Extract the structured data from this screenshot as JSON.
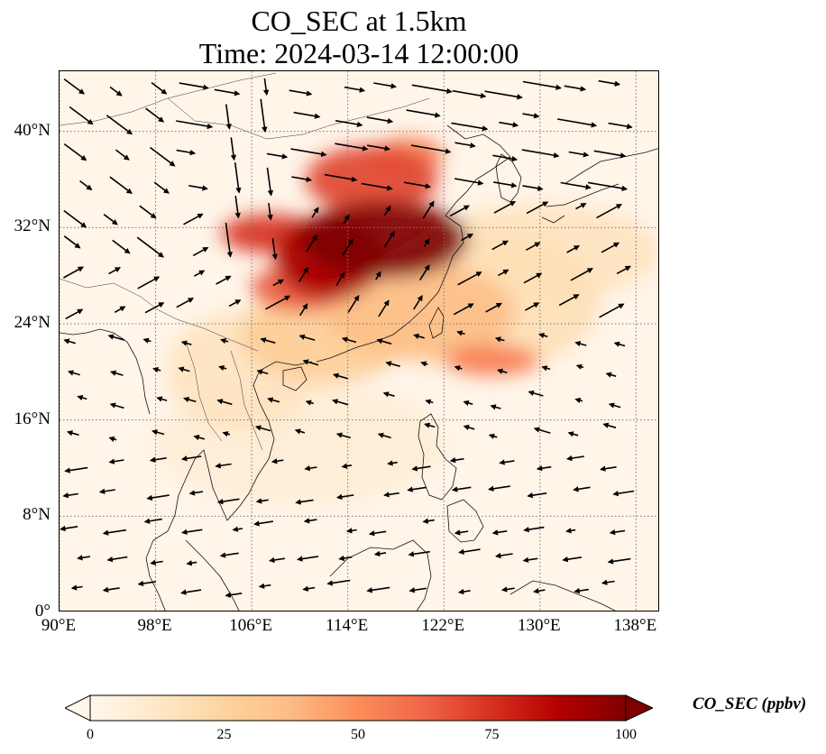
{
  "title": {
    "line1": "CO_SEC at 1.5km",
    "line2": "Time: 2024-03-14 12:00:00"
  },
  "map": {
    "projection": "PlateCarree",
    "lon_range": [
      90,
      140
    ],
    "lat_range": [
      0,
      45
    ],
    "gridlines": "dotted gray every 8 degrees",
    "lat_ticks": [
      {
        "value": 0,
        "label": "0°"
      },
      {
        "value": 8,
        "label": "8°N"
      },
      {
        "value": 16,
        "label": "16°N"
      },
      {
        "value": 24,
        "label": "24°N"
      },
      {
        "value": 32,
        "label": "32°N"
      },
      {
        "value": 40,
        "label": "40°N"
      }
    ],
    "lon_ticks": [
      {
        "value": 90,
        "label": "90°E"
      },
      {
        "value": 98,
        "label": "98°E"
      },
      {
        "value": 106,
        "label": "106°E"
      },
      {
        "value": 114,
        "label": "114°E"
      },
      {
        "value": 122,
        "label": "122°E"
      },
      {
        "value": 130,
        "label": "130°E"
      },
      {
        "value": 138,
        "label": "138°E"
      }
    ],
    "field": "CO_SEC concentration",
    "plumes": [
      {
        "lon": 117,
        "lat": 31,
        "rx": 7,
        "ry": 3.2,
        "value": 100
      },
      {
        "lon": 112.5,
        "lat": 29.5,
        "rx": 4.5,
        "ry": 3.5,
        "value": 90
      },
      {
        "lon": 107.5,
        "lat": 31.5,
        "rx": 4,
        "ry": 1.6,
        "value": 75
      },
      {
        "lon": 116,
        "lat": 36,
        "rx": 5.5,
        "ry": 2.8,
        "value": 70
      },
      {
        "lon": 119,
        "lat": 38,
        "rx": 3,
        "ry": 1.5,
        "value": 55
      },
      {
        "lon": 110,
        "lat": 27,
        "rx": 4,
        "ry": 2,
        "value": 65
      },
      {
        "lon": 126,
        "lat": 21,
        "rx": 4,
        "ry": 1.3,
        "value": 55
      },
      {
        "lon": 120,
        "lat": 25,
        "rx": 8,
        "ry": 4,
        "value": 35
      },
      {
        "lon": 112,
        "lat": 23,
        "rx": 7,
        "ry": 4,
        "value": 28
      },
      {
        "lon": 125,
        "lat": 26,
        "rx": 10,
        "ry": 6,
        "value": 18
      },
      {
        "lon": 130,
        "lat": 30,
        "rx": 10,
        "ry": 4,
        "value": 15
      },
      {
        "lon": 105,
        "lat": 20,
        "rx": 6,
        "ry": 5,
        "value": 15
      },
      {
        "lon": 110,
        "lat": 14,
        "rx": 12,
        "ry": 5,
        "value": 8
      }
    ]
  },
  "colorbar": {
    "label": "CO_SEC (ppbv)",
    "range": [
      0,
      100
    ],
    "extend": "both",
    "colormap": "OrRd",
    "ticks": [
      {
        "value": 0,
        "label": "0"
      },
      {
        "value": 25,
        "label": "25"
      },
      {
        "value": 50,
        "label": "50"
      },
      {
        "value": 75,
        "label": "75"
      },
      {
        "value": 100,
        "label": "100"
      }
    ],
    "stops": [
      "#fff7ec",
      "#fee8c8",
      "#fdd49e",
      "#fdbb84",
      "#fc8d59",
      "#ef6548",
      "#d7301f",
      "#b30000",
      "#7f0000"
    ]
  }
}
